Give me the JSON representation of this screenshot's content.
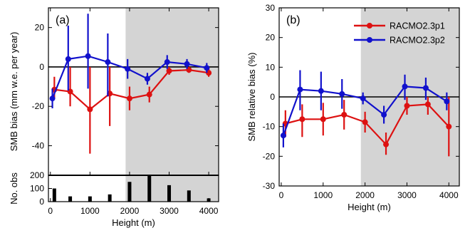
{
  "x_tick_labels": [
    "0",
    "1000",
    "2000",
    "3000",
    "4000"
  ],
  "chart_data": [
    {
      "type": "line",
      "panel_label": "(a)",
      "xlabel": "Height (m)",
      "ylabel": "SMB bias (mm w.e. per year)",
      "xlim": [
        -50,
        4250
      ],
      "ylim": [
        -55,
        30
      ],
      "yticks": [
        -40,
        -20,
        0,
        20
      ],
      "shaded_x_from": 1900,
      "zero_line": true,
      "series": [
        {
          "name": "RACMO2.3p1",
          "color": "#dd1111",
          "x": [
            100,
            500,
            1000,
            1500,
            2000,
            2500,
            3000,
            3500,
            4000
          ],
          "y": [
            -11.5,
            -12.5,
            -21.5,
            -13.5,
            -16,
            -14,
            -2,
            -1.5,
            -3
          ],
          "err_low": [
            -16,
            -20,
            -44,
            -30,
            -22,
            -18,
            -4,
            -3,
            -5
          ],
          "err_high": [
            -5,
            0,
            0,
            0,
            -10,
            -10,
            0,
            0,
            0
          ]
        },
        {
          "name": "RACMO2.3p2",
          "color": "#1111cc",
          "x": [
            50,
            450,
            950,
            1450,
            1950,
            2450,
            2950,
            3450,
            3950
          ],
          "y": [
            -16,
            4,
            5.5,
            2.5,
            -1,
            -6,
            2.5,
            1.5,
            -0.5
          ],
          "err_low": [
            -21,
            -12,
            -11,
            -15,
            -6,
            -9,
            -1,
            -1,
            -3
          ],
          "err_high": [
            -11,
            21,
            27,
            17,
            4,
            -3,
            6,
            4,
            2
          ]
        }
      ]
    },
    {
      "type": "bar",
      "xlabel": "Height (m)",
      "ylabel": "No. obs",
      "ylim": [
        0,
        200
      ],
      "yticks": [
        0,
        100,
        200
      ],
      "x": [
        100,
        500,
        1000,
        1500,
        2000,
        2500,
        3000,
        3500,
        4000
      ],
      "values": [
        100,
        40,
        40,
        55,
        150,
        200,
        125,
        85,
        25
      ]
    },
    {
      "type": "line",
      "panel_label": "(b)",
      "xlabel": "Height (m)",
      "ylabel": "SMB relative bias (%)",
      "xlim": [
        -50,
        4250
      ],
      "ylim": [
        -30,
        30
      ],
      "yticks": [
        -30,
        -20,
        -10,
        0,
        10,
        20,
        30
      ],
      "shaded_x_from": 1900,
      "zero_line": true,
      "legend_position": "top-right",
      "series": [
        {
          "name": "RACMO2.3p1",
          "color": "#dd1111",
          "x": [
            100,
            500,
            1000,
            1500,
            2000,
            2500,
            3000,
            3500,
            4000
          ],
          "y": [
            -9,
            -7.5,
            -7.5,
            -6,
            -8.5,
            -16,
            -3,
            -2.5,
            -10
          ],
          "err_low": [
            -13.5,
            -13.5,
            -13,
            -11,
            -12,
            -19.5,
            -6,
            -6,
            -20
          ],
          "err_high": [
            -4.5,
            -2.5,
            -2,
            -1,
            -5,
            -12,
            0,
            0,
            0
          ]
        },
        {
          "name": "RACMO2.3p2",
          "color": "#1111cc",
          "x": [
            50,
            450,
            950,
            1450,
            1950,
            2450,
            2950,
            3450,
            3950
          ],
          "y": [
            -13,
            2.5,
            2,
            1,
            -0.5,
            -6,
            3.5,
            3,
            -1.5
          ],
          "err_low": [
            -17,
            -4.5,
            -4.5,
            -4,
            -2.5,
            -9,
            -1,
            -1,
            -4.5
          ],
          "err_high": [
            -9,
            9,
            8.5,
            6,
            1.5,
            -3,
            7.5,
            6.5,
            1.5
          ]
        }
      ]
    }
  ]
}
